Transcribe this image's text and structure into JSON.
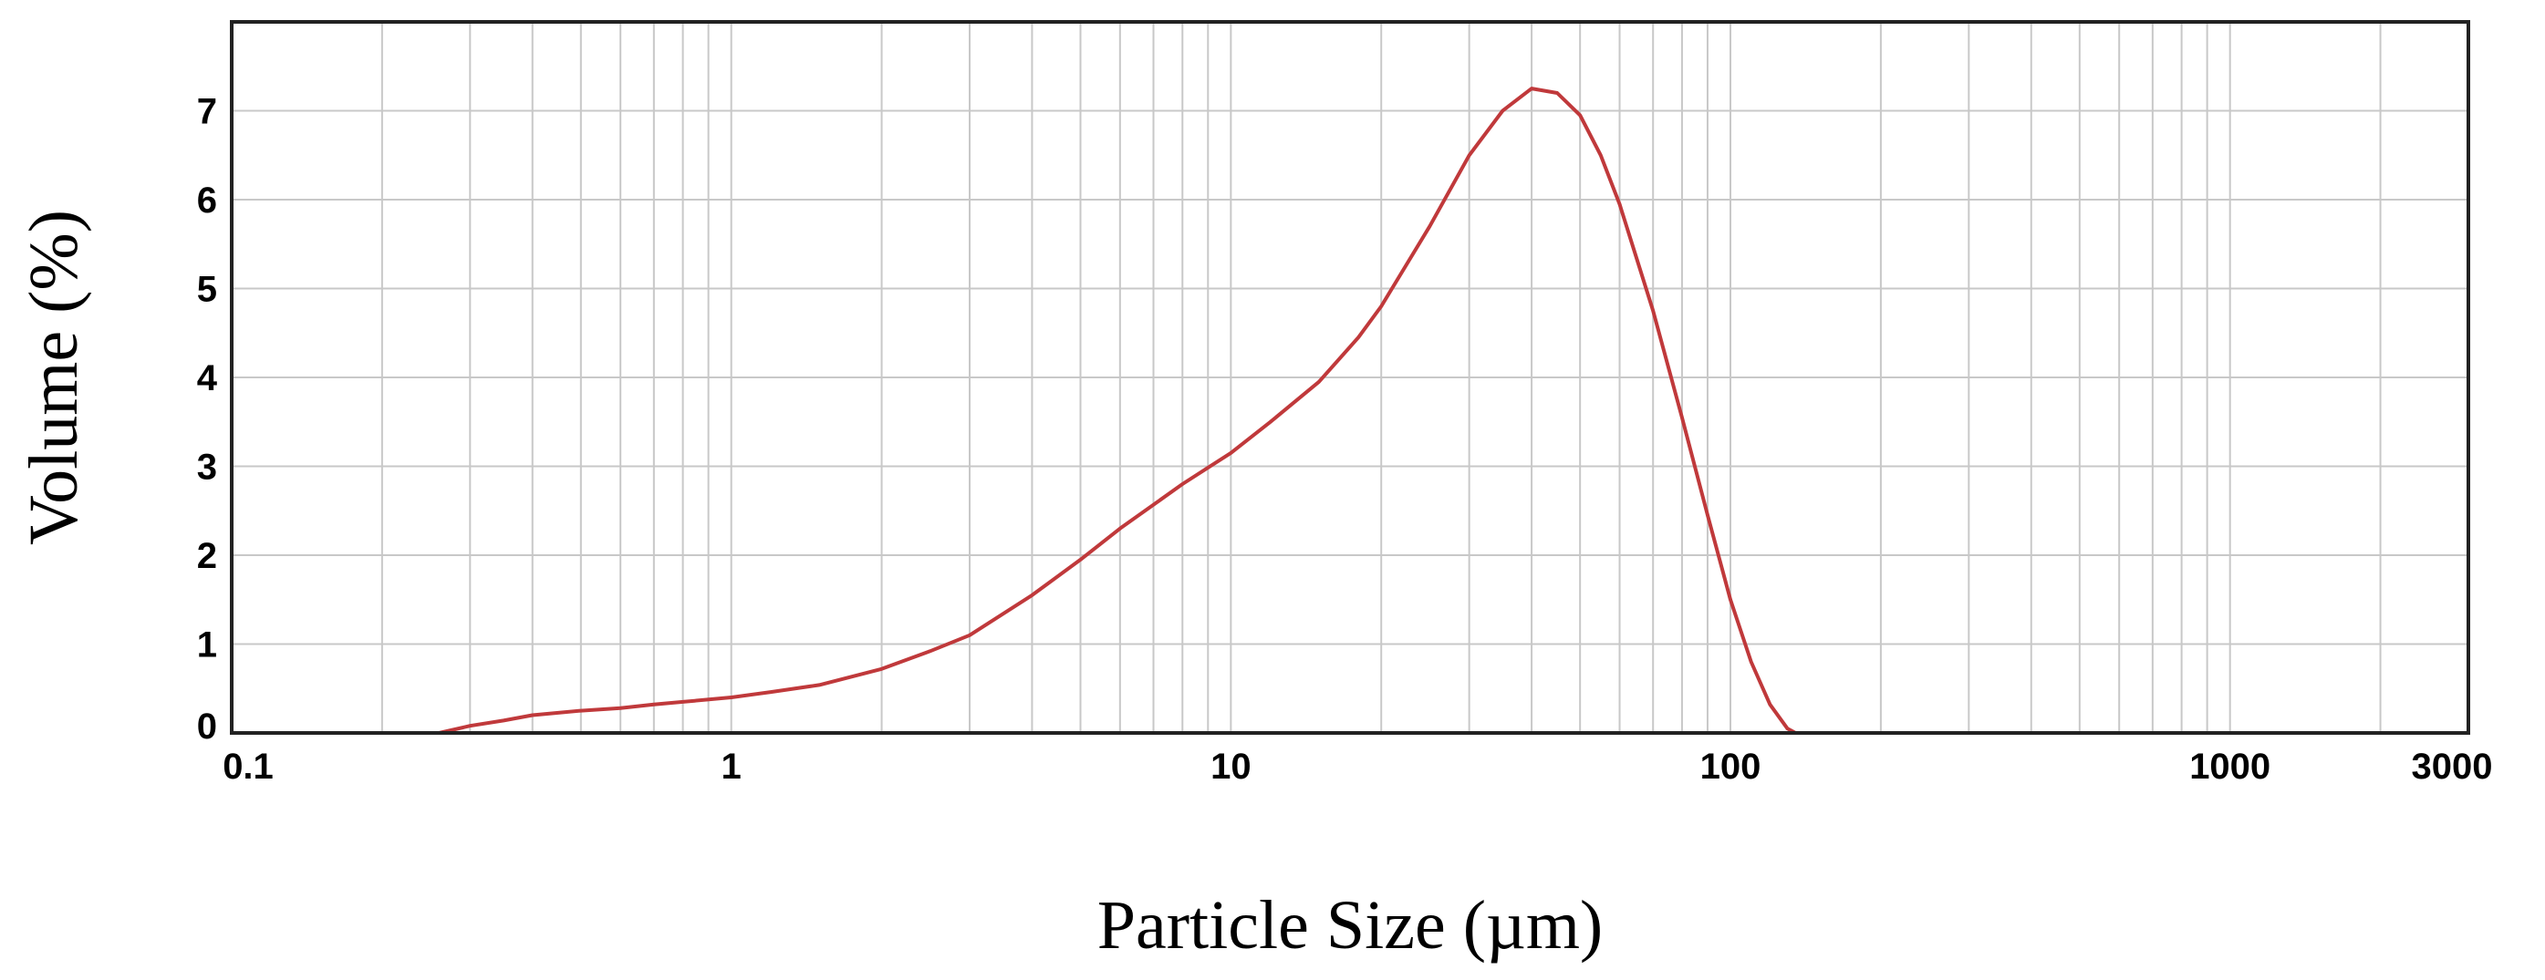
{
  "chart_data": {
    "type": "line",
    "title": "",
    "xlabel": "Particle Size (µm)",
    "ylabel": "Volume (%)",
    "x_scale": "log",
    "xlim": [
      0.1,
      3000
    ],
    "ylim": [
      0,
      8
    ],
    "x_ticks": [
      0.1,
      1,
      10,
      100,
      1000,
      3000
    ],
    "x_tick_labels": [
      "0.1",
      "1",
      "10",
      "100",
      "1000",
      "3000"
    ],
    "y_ticks": [
      0,
      1,
      2,
      3,
      4,
      5,
      6,
      7
    ],
    "y_tick_labels": [
      "0",
      "1",
      "2",
      "3",
      "4",
      "5",
      "6",
      "7"
    ],
    "grid": true,
    "legend": "none",
    "series": [
      {
        "color": "#c0393b",
        "x": [
          0.1,
          0.2,
          0.26,
          0.3,
          0.35,
          0.4,
          0.5,
          0.6,
          0.7,
          0.8,
          1.0,
          1.2,
          1.5,
          2.0,
          2.5,
          3.0,
          4.0,
          5.0,
          6.0,
          8.0,
          10,
          12,
          15,
          18,
          20,
          25,
          30,
          35,
          40,
          45,
          50,
          55,
          60,
          70,
          80,
          90,
          100,
          110,
          120,
          130,
          135,
          150,
          200,
          500,
          1000,
          2000
        ],
        "y": [
          0,
          0,
          0,
          0.08,
          0.14,
          0.2,
          0.25,
          0.28,
          0.32,
          0.35,
          0.4,
          0.46,
          0.54,
          0.72,
          0.92,
          1.1,
          1.55,
          1.95,
          2.3,
          2.8,
          3.15,
          3.5,
          3.95,
          4.45,
          4.8,
          5.7,
          6.5,
          7.0,
          7.25,
          7.2,
          6.95,
          6.5,
          5.95,
          4.75,
          3.55,
          2.45,
          1.5,
          0.8,
          0.32,
          0.05,
          0,
          0,
          0,
          0,
          0,
          0
        ]
      }
    ]
  }
}
